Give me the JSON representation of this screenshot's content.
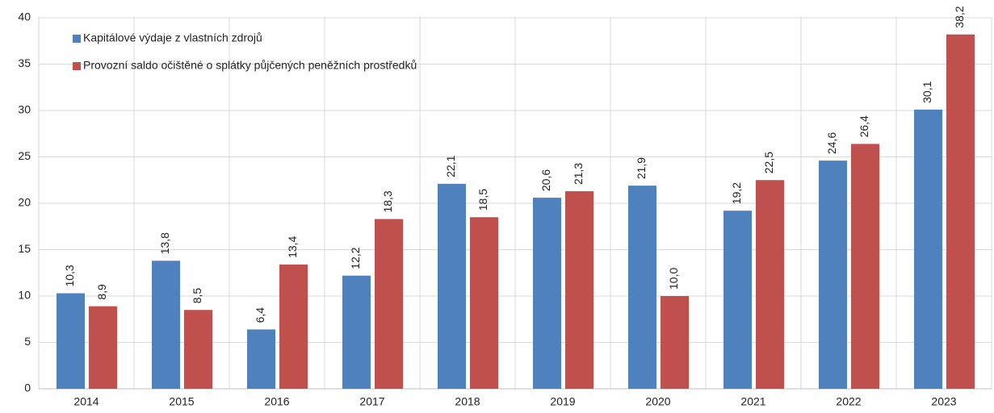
{
  "chart_data": {
    "type": "bar",
    "categories": [
      "2014",
      "2015",
      "2016",
      "2017",
      "2018",
      "2019",
      "2020",
      "2021",
      "2022",
      "2023"
    ],
    "series": [
      {
        "name": "Kapitálové výdaje z vlastních zdrojů",
        "color": "#4f81bd",
        "values": [
          10.3,
          13.8,
          6.4,
          12.2,
          22.1,
          20.6,
          21.9,
          19.2,
          24.6,
          30.1
        ],
        "value_labels": [
          "10,3",
          "13,8",
          "6,4",
          "12,2",
          "22,1",
          "20,6",
          "21,9",
          "19,2",
          "24,6",
          "30,1"
        ]
      },
      {
        "name": "Provozní saldo očištěné o splátky půjčených peněžních prostředků",
        "color": "#c0504d",
        "values": [
          8.9,
          8.5,
          13.4,
          18.3,
          18.5,
          21.3,
          10.0,
          22.5,
          26.4,
          38.2
        ],
        "value_labels": [
          "8,9",
          "8,5",
          "13,4",
          "18,3",
          "18,5",
          "21,3",
          "10,0",
          "22,5",
          "26,4",
          "38,2"
        ]
      }
    ],
    "ylim": [
      0,
      40
    ],
    "yticks": [
      0,
      5,
      10,
      15,
      20,
      25,
      30,
      35,
      40
    ],
    "grid": true,
    "legend": "top-left"
  }
}
